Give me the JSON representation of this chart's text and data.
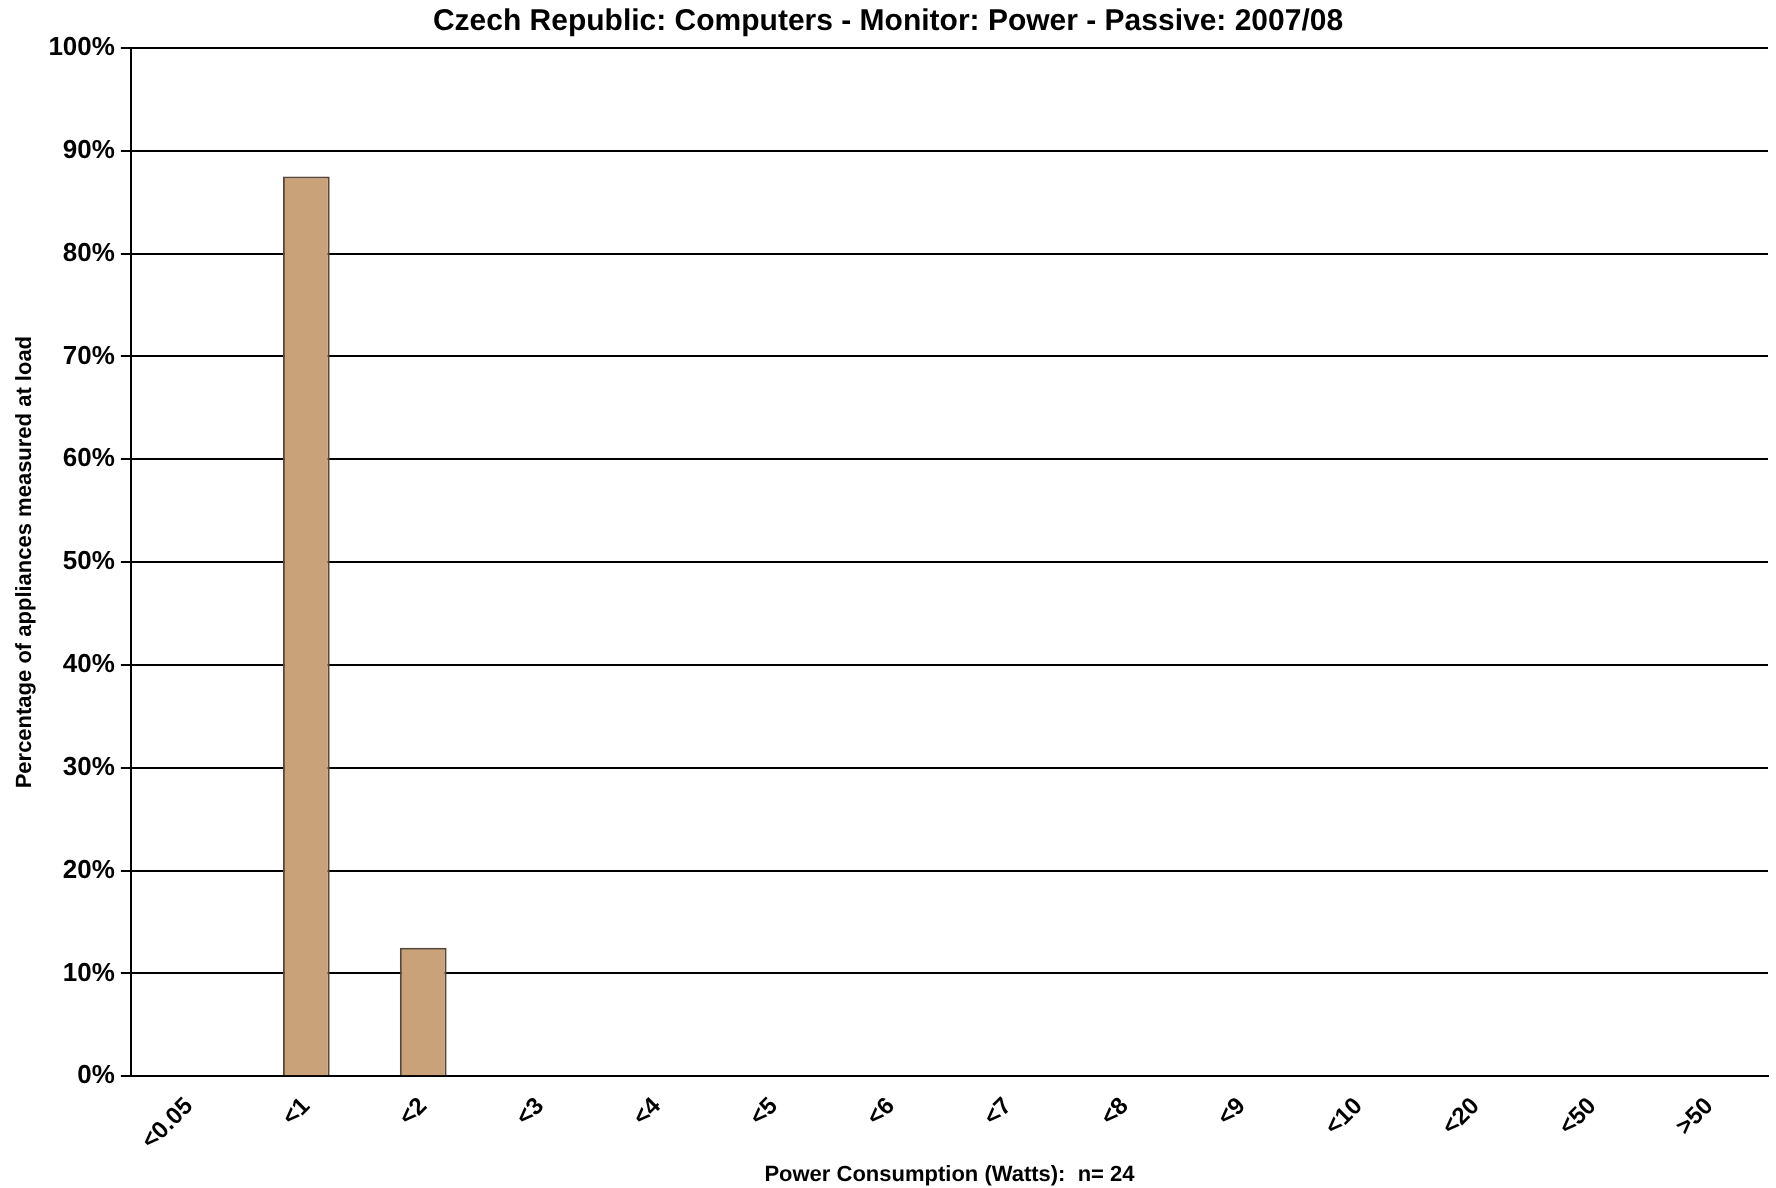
{
  "chart_data": {
    "type": "bar",
    "title": "Czech Republic: Computers - Monitor: Power - Passive: 2007/08",
    "xlabel": "Power Consumption (Watts):  n= 24",
    "ylabel": "Percentage of appliances measured at load",
    "categories": [
      "<0.05",
      "<1",
      "<2",
      "<3",
      "<4",
      "<5",
      "<6",
      "<7",
      "<8",
      "<9",
      "<10",
      "<20",
      "<50",
      ">50"
    ],
    "values": [
      0,
      87.5,
      12.5,
      0,
      0,
      0,
      0,
      0,
      0,
      0,
      0,
      0,
      0,
      0
    ],
    "color": "#c9a27a",
    "ylim": [
      0,
      100
    ],
    "yticks": [
      {
        "value": 0,
        "label": "0%"
      },
      {
        "value": 10,
        "label": "10%"
      },
      {
        "value": 20,
        "label": "20%"
      },
      {
        "value": 30,
        "label": "30%"
      },
      {
        "value": 40,
        "label": "40%"
      },
      {
        "value": 50,
        "label": "50%"
      },
      {
        "value": 60,
        "label": "60%"
      },
      {
        "value": 70,
        "label": "70%"
      },
      {
        "value": 80,
        "label": "80%"
      },
      {
        "value": 90,
        "label": "90%"
      },
      {
        "value": 100,
        "label": "100%"
      }
    ],
    "grid": "y"
  }
}
